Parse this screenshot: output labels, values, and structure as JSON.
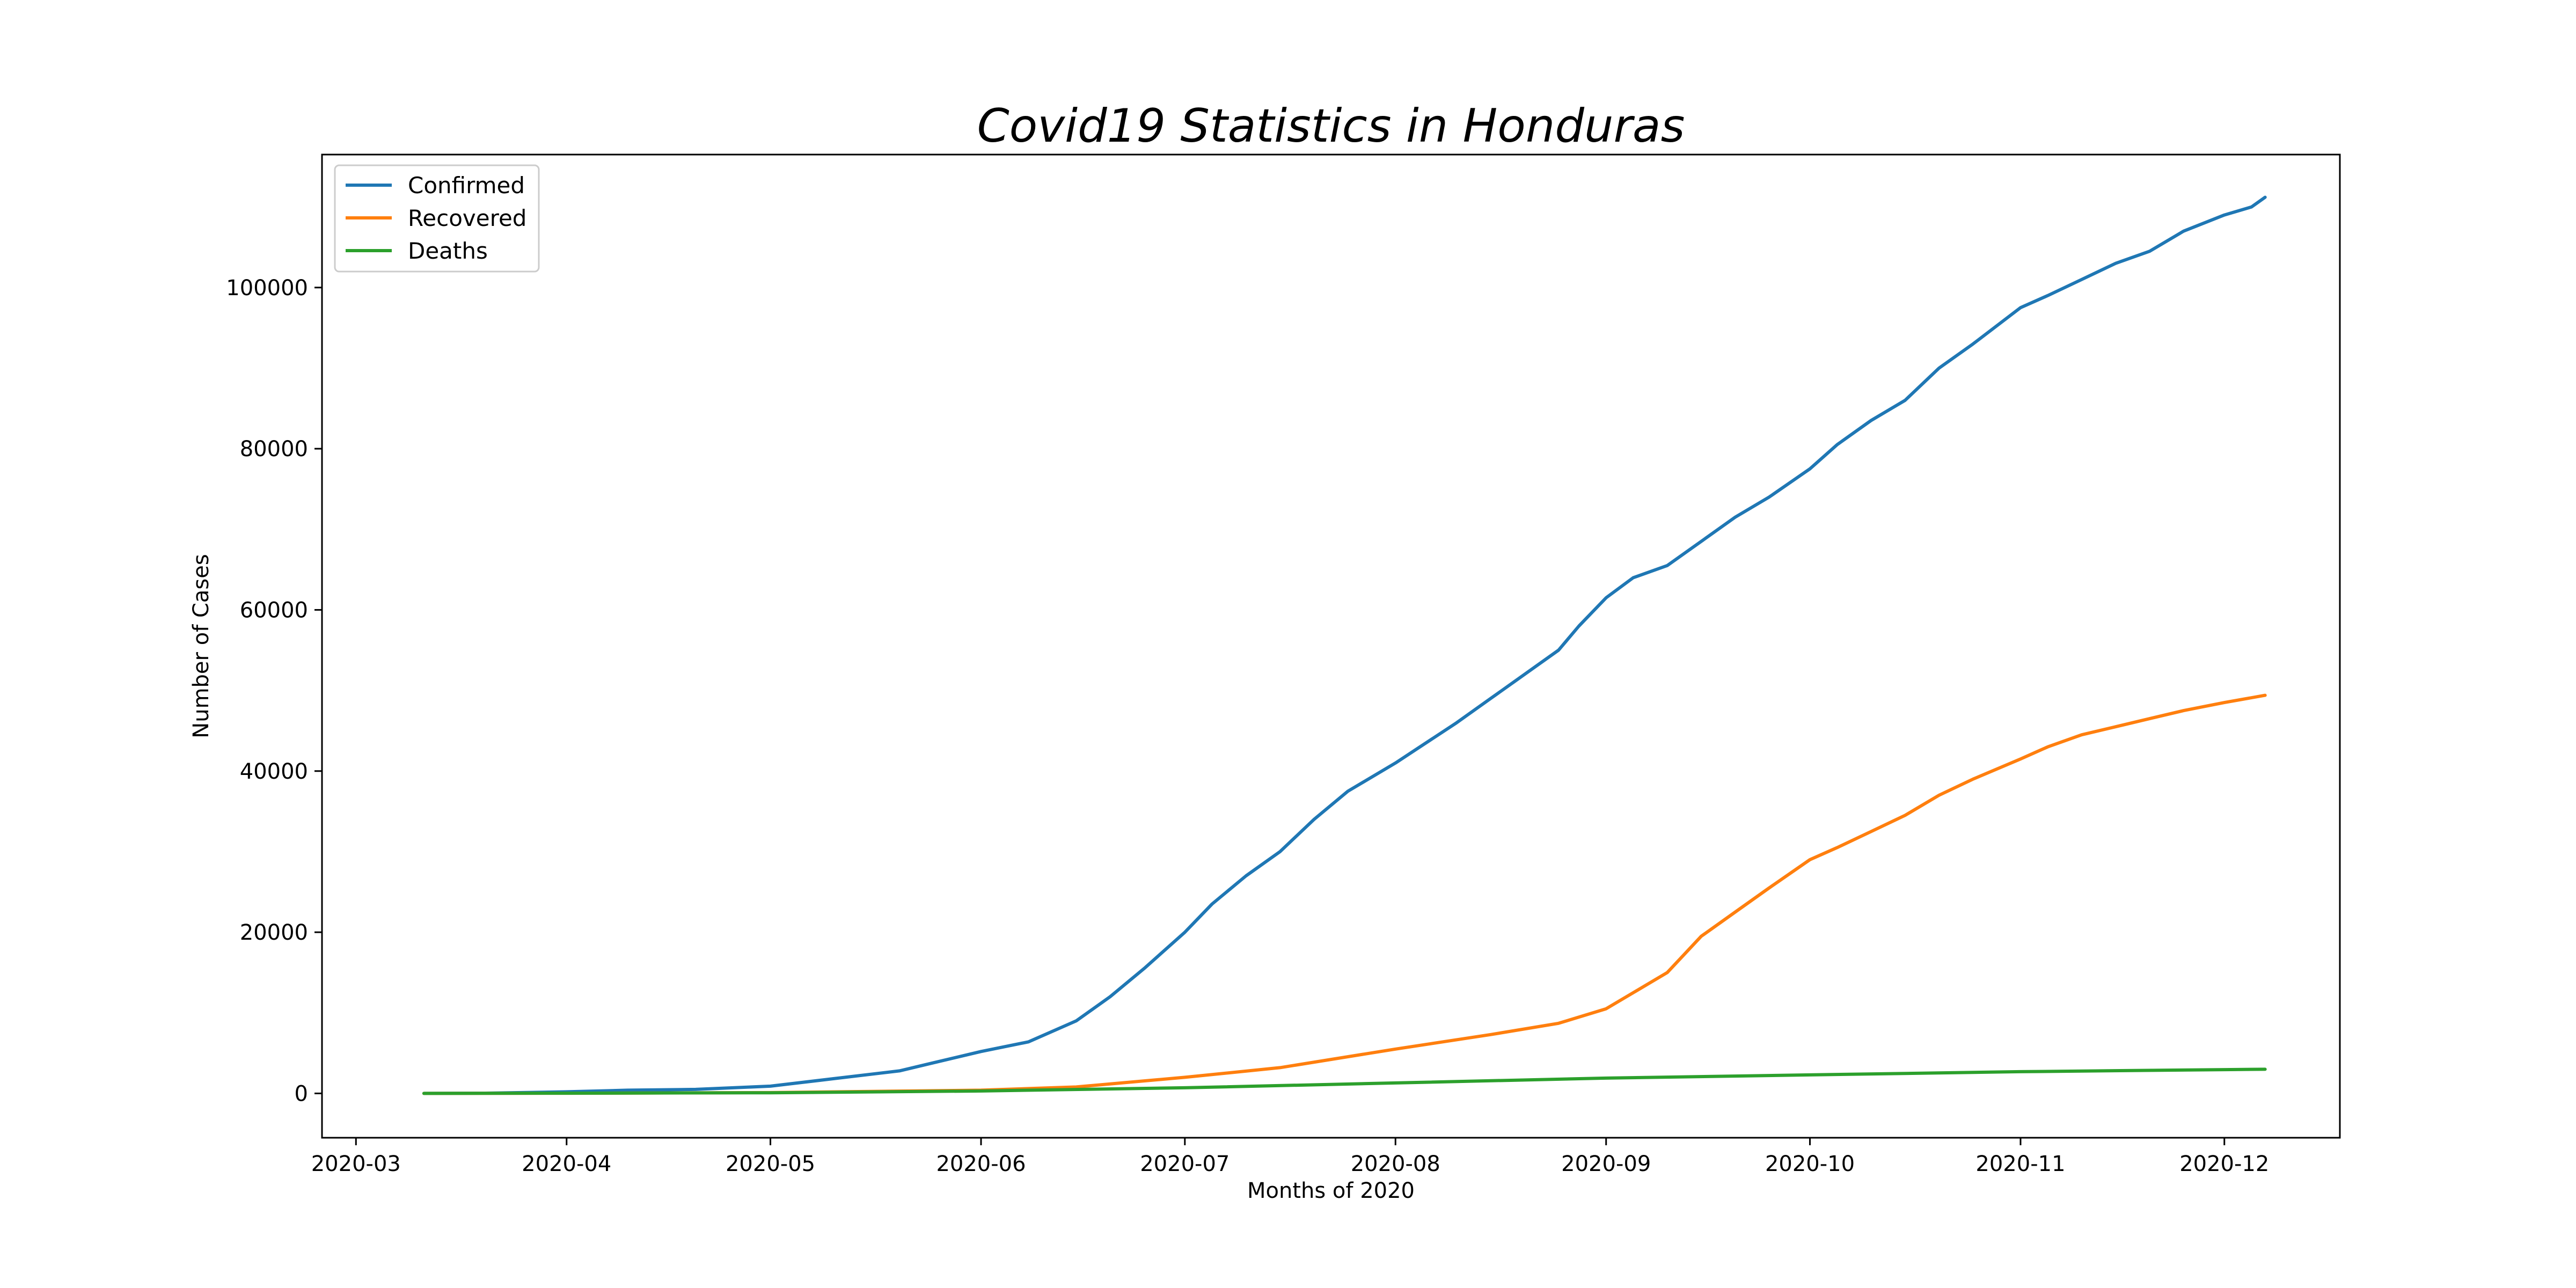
{
  "chart_data": {
    "type": "line",
    "title": "Covid19 Statistics in Honduras",
    "xlabel": "Months of 2020",
    "ylabel": "Number of Cases",
    "x_type": "date",
    "xlim": [
      "2020-02-25",
      "2020-12-18"
    ],
    "ylim": [
      -5500,
      116500
    ],
    "x_ticks": [
      "2020-03-01",
      "2020-04-01",
      "2020-05-01",
      "2020-06-01",
      "2020-07-01",
      "2020-08-01",
      "2020-09-01",
      "2020-10-01",
      "2020-11-01",
      "2020-12-01"
    ],
    "x_tick_labels": [
      "2020-03",
      "2020-04",
      "2020-05",
      "2020-06",
      "2020-07",
      "2020-08",
      "2020-09",
      "2020-10",
      "2020-11",
      "2020-12"
    ],
    "y_ticks": [
      0,
      20000,
      40000,
      60000,
      80000,
      100000
    ],
    "y_tick_labels": [
      "0",
      "20000",
      "40000",
      "60000",
      "80000",
      "100000"
    ],
    "grid": false,
    "legend_position": "top-left",
    "series": [
      {
        "name": "Confirmed",
        "color": "#1f77b4",
        "points": [
          [
            "2020-03-11",
            2
          ],
          [
            "2020-03-20",
            30
          ],
          [
            "2020-04-01",
            200
          ],
          [
            "2020-04-10",
            400
          ],
          [
            "2020-04-20",
            500
          ],
          [
            "2020-05-01",
            900
          ],
          [
            "2020-05-10",
            1800
          ],
          [
            "2020-05-20",
            2800
          ],
          [
            "2020-05-25",
            3800
          ],
          [
            "2020-06-01",
            5200
          ],
          [
            "2020-06-08",
            6400
          ],
          [
            "2020-06-15",
            9000
          ],
          [
            "2020-06-20",
            12000
          ],
          [
            "2020-06-25",
            15500
          ],
          [
            "2020-07-01",
            20000
          ],
          [
            "2020-07-05",
            23500
          ],
          [
            "2020-07-10",
            27000
          ],
          [
            "2020-07-15",
            30000
          ],
          [
            "2020-07-20",
            34000
          ],
          [
            "2020-07-25",
            37500
          ],
          [
            "2020-08-01",
            41000
          ],
          [
            "2020-08-10",
            46000
          ],
          [
            "2020-08-15",
            49000
          ],
          [
            "2020-08-20",
            52000
          ],
          [
            "2020-08-25",
            55000
          ],
          [
            "2020-08-28",
            58000
          ],
          [
            "2020-09-01",
            61500
          ],
          [
            "2020-09-05",
            64000
          ],
          [
            "2020-09-10",
            65500
          ],
          [
            "2020-09-15",
            68500
          ],
          [
            "2020-09-20",
            71500
          ],
          [
            "2020-09-25",
            74000
          ],
          [
            "2020-10-01",
            77500
          ],
          [
            "2020-10-05",
            80500
          ],
          [
            "2020-10-10",
            83500
          ],
          [
            "2020-10-15",
            86000
          ],
          [
            "2020-10-20",
            90000
          ],
          [
            "2020-10-25",
            93000
          ],
          [
            "2020-11-01",
            97500
          ],
          [
            "2020-11-05",
            99000
          ],
          [
            "2020-11-10",
            101000
          ],
          [
            "2020-11-15",
            103000
          ],
          [
            "2020-11-20",
            104500
          ],
          [
            "2020-11-25",
            107000
          ],
          [
            "2020-12-01",
            109000
          ],
          [
            "2020-12-05",
            110000
          ],
          [
            "2020-12-07",
            111200
          ]
        ]
      },
      {
        "name": "Recovered",
        "color": "#ff7f0e",
        "points": [
          [
            "2020-03-11",
            0
          ],
          [
            "2020-04-01",
            20
          ],
          [
            "2020-05-01",
            100
          ],
          [
            "2020-06-01",
            400
          ],
          [
            "2020-06-15",
            800
          ],
          [
            "2020-07-01",
            2000
          ],
          [
            "2020-07-15",
            3200
          ],
          [
            "2020-08-01",
            5500
          ],
          [
            "2020-08-15",
            7300
          ],
          [
            "2020-08-25",
            8700
          ],
          [
            "2020-09-01",
            10500
          ],
          [
            "2020-09-05",
            12500
          ],
          [
            "2020-09-10",
            15000
          ],
          [
            "2020-09-15",
            19500
          ],
          [
            "2020-09-20",
            22500
          ],
          [
            "2020-09-25",
            25500
          ],
          [
            "2020-10-01",
            29000
          ],
          [
            "2020-10-05",
            30500
          ],
          [
            "2020-10-10",
            32500
          ],
          [
            "2020-10-15",
            34500
          ],
          [
            "2020-10-20",
            37000
          ],
          [
            "2020-10-25",
            39000
          ],
          [
            "2020-11-01",
            41500
          ],
          [
            "2020-11-05",
            43000
          ],
          [
            "2020-11-10",
            44500
          ],
          [
            "2020-11-15",
            45500
          ],
          [
            "2020-11-20",
            46500
          ],
          [
            "2020-11-25",
            47500
          ],
          [
            "2020-12-01",
            48500
          ],
          [
            "2020-12-07",
            49400
          ]
        ]
      },
      {
        "name": "Deaths",
        "color": "#2ca02c",
        "points": [
          [
            "2020-03-11",
            0
          ],
          [
            "2020-04-01",
            30
          ],
          [
            "2020-05-01",
            80
          ],
          [
            "2020-06-01",
            300
          ],
          [
            "2020-07-01",
            700
          ],
          [
            "2020-08-01",
            1300
          ],
          [
            "2020-09-01",
            1900
          ],
          [
            "2020-10-01",
            2300
          ],
          [
            "2020-11-01",
            2700
          ],
          [
            "2020-12-01",
            2950
          ],
          [
            "2020-12-07",
            3000
          ]
        ]
      }
    ]
  }
}
